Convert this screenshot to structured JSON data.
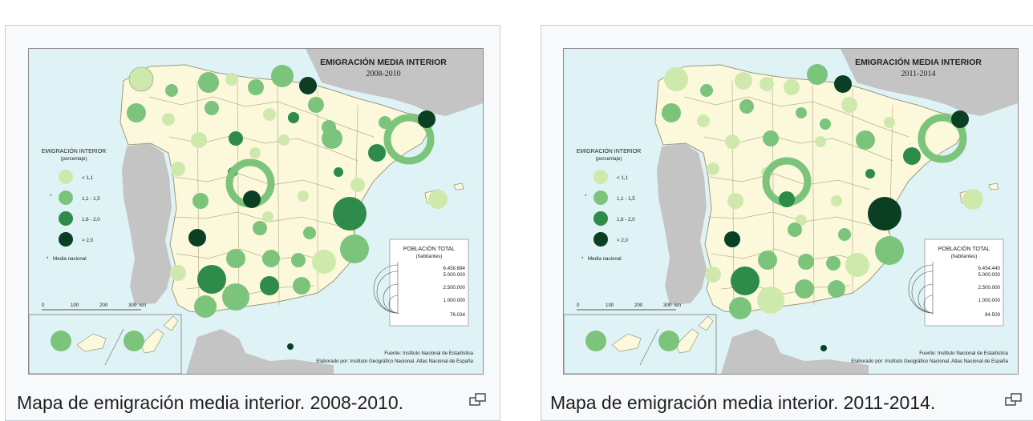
{
  "maps": [
    {
      "title": "EMIGRACIÓN MEDIA INTERIOR",
      "period": "2008-2010",
      "caption": "Mapa de emigración media interior. 2008-2010.",
      "pop_values": [
        "6.458.684",
        "5.000.000",
        "2.500.000",
        "1.000.000",
        "76.034"
      ]
    },
    {
      "title": "EMIGRACIÓN MEDIA INTERIOR",
      "period": "2011-2014",
      "caption": "Mapa de emigración media interior. 2011-2014.",
      "pop_values": [
        "6.454.440",
        "5.000.000",
        "2.500.000",
        "1.000.000",
        "84.509"
      ]
    }
  ],
  "legend": {
    "title": "EMIGRACIÓN INTERIOR",
    "subtitle": "(porcentaje)",
    "classes": [
      "< 1,1",
      "1,1 - 1,5",
      "1,6 - 2,0",
      "> 2,0"
    ],
    "class_colors": [
      "#cfe9ac",
      "#7cc47c",
      "#2e8b4a",
      "#0b3f23"
    ],
    "national_mean": "Media nacional"
  },
  "population_legend": {
    "title": "POBLACIÓN TOTAL",
    "unit": "(habitantes)"
  },
  "scale_bar": {
    "ticks": [
      "0",
      "100",
      "200",
      "300"
    ],
    "unit": "km"
  },
  "source": "Fuente: Instituto Nacional de Estadística",
  "credit": "Elaborado por: Instituto Geográfico Nacional. Atlas Nacional de España",
  "colors": {
    "land_spain": "#fbf8dc",
    "foreign_land": "#c4c4c4",
    "sea": "#dff3f7",
    "border": "#9a9a7a"
  }
}
